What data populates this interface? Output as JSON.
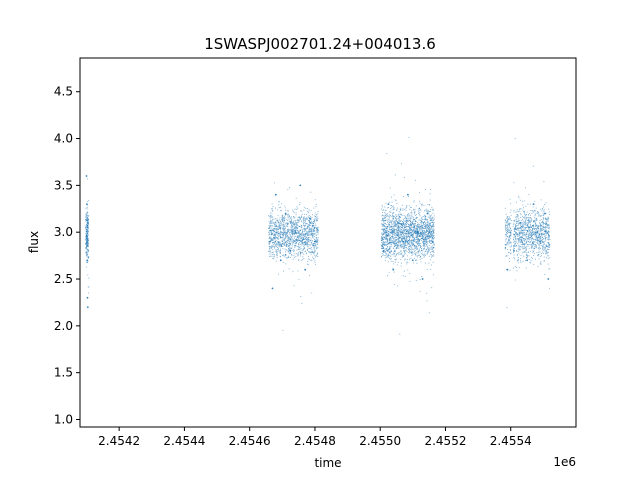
{
  "chart_data": {
    "type": "scatter",
    "title": "1SWASPJ002701.24+004013.6",
    "xlabel": "time",
    "ylabel": "flux",
    "x_offset_label": "1e6",
    "xlim": [
      2454080,
      2455600
    ],
    "ylim": [
      0.92,
      4.86
    ],
    "x_ticks": [
      {
        "value": 2454200,
        "label": "2.4542"
      },
      {
        "value": 2454400,
        "label": "2.4544"
      },
      {
        "value": 2454600,
        "label": "2.4546"
      },
      {
        "value": 2454800,
        "label": "2.4548"
      },
      {
        "value": 2455000,
        "label": "2.4550"
      },
      {
        "value": 2455200,
        "label": "2.4552"
      },
      {
        "value": 2455400,
        "label": "2.4554"
      }
    ],
    "y_ticks": [
      {
        "value": 1.0,
        "label": "1.0"
      },
      {
        "value": 1.5,
        "label": "1.5"
      },
      {
        "value": 2.0,
        "label": "2.0"
      },
      {
        "value": 2.5,
        "label": "2.5"
      },
      {
        "value": 3.0,
        "label": "3.0"
      },
      {
        "value": 3.5,
        "label": "3.5"
      },
      {
        "value": 4.0,
        "label": "4.0"
      },
      {
        "value": 4.5,
        "label": "4.5"
      }
    ],
    "grid": false,
    "marker_color": "#1f77b4",
    "series": [
      {
        "x": [
          2454100,
          2454101,
          2454102,
          2454103,
          2454104,
          2454662,
          2454670,
          2454680,
          2454695,
          2454710,
          2454725,
          2454740,
          2454755,
          2454770,
          2454785,
          2454800,
          2455010,
          2455025,
          2455040,
          2455055,
          2455070,
          2455085,
          2455100,
          2455115,
          2455130,
          2455145,
          2455160,
          2455390,
          2455410,
          2455430,
          2455450,
          2455470,
          2455490,
          2455505,
          2455515
        ],
        "y": [
          3.6,
          3.3,
          2.7,
          2.3,
          2.2,
          2.9,
          2.4,
          3.4,
          2.7,
          3.2,
          2.8,
          3.0,
          3.5,
          2.6,
          3.1,
          2.9,
          2.8,
          3.3,
          2.6,
          3.1,
          2.9,
          3.4,
          2.7,
          3.0,
          2.5,
          3.2,
          2.9,
          2.6,
          2.8,
          3.1,
          2.7,
          3.3,
          2.9,
          3.2,
          2.5
        ]
      }
    ]
  }
}
